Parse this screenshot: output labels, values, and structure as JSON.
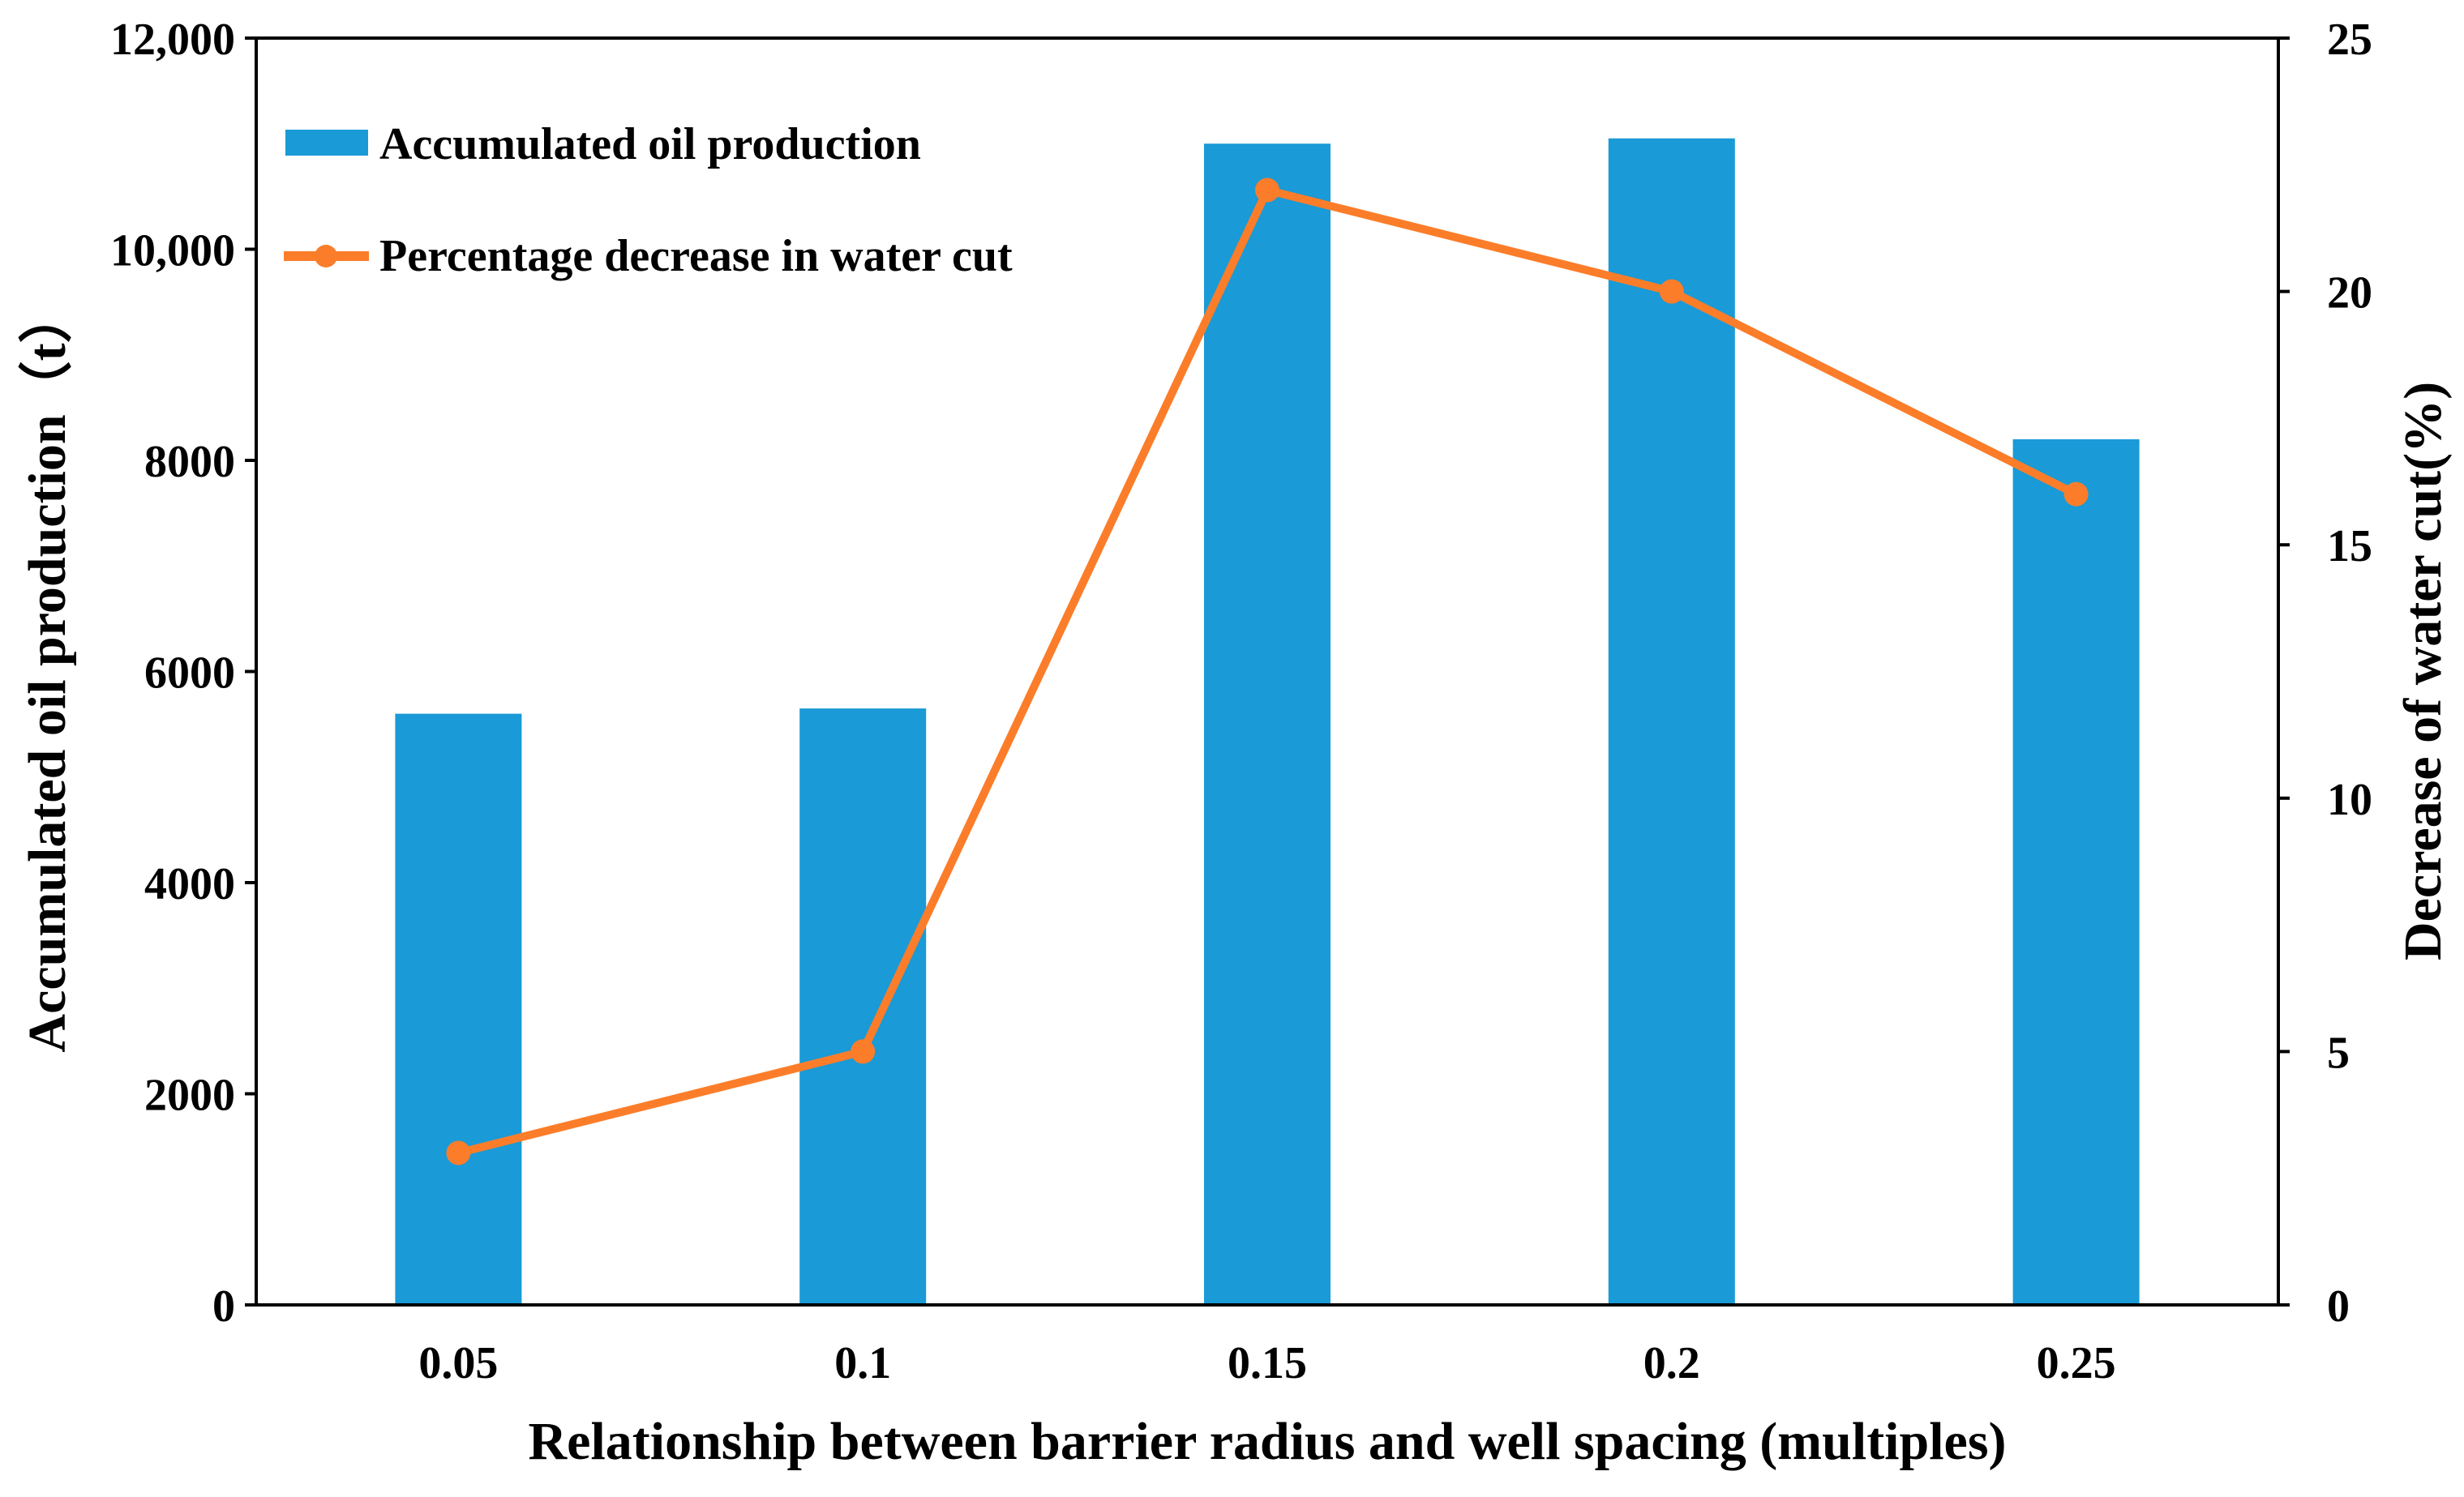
{
  "chart_data": {
    "type": "bar+line",
    "categories": [
      "0.05",
      "0.1",
      "0.15",
      "0.2",
      "0.25"
    ],
    "xlabel": "Relationship between barrier radius and well spacing (multiples)",
    "ylabel": "Accumulated oil production（t）",
    "y2label": "Decrease of water cut(%)",
    "ylim": [
      0,
      12000
    ],
    "y2lim": [
      0,
      25
    ],
    "yticks": [
      "0",
      "2000",
      "4000",
      "6000",
      "8000",
      "10,000",
      "12,000"
    ],
    "y2ticks": [
      "0",
      "5",
      "10",
      "15",
      "20",
      "25"
    ],
    "grid": false,
    "legend_position": "top-left",
    "series": [
      {
        "name": "Accumulated oil production",
        "type": "bar",
        "axis": "left",
        "color": "#1a9ad6",
        "values": [
          5600,
          5650,
          11000,
          11050,
          8200
        ]
      },
      {
        "name": "Percentage decrease in water cut",
        "type": "line",
        "axis": "right",
        "color": "#fb7d2a",
        "values": [
          3,
          5,
          22,
          20,
          16
        ]
      }
    ]
  }
}
